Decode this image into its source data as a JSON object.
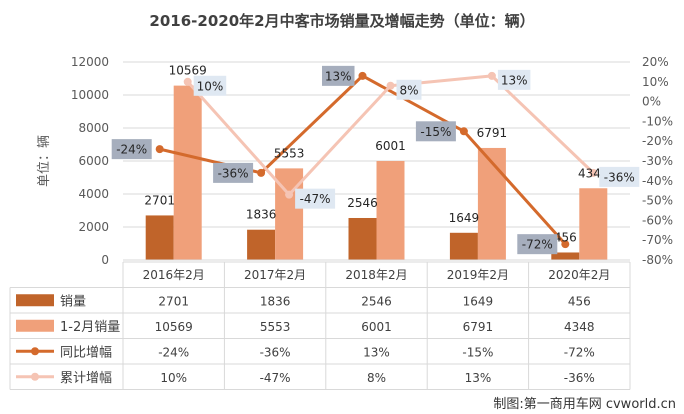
{
  "chart_data": {
    "type": "bar",
    "title": "2016-2020年2月中客市场销量及增幅走势（单位：辆）",
    "ylabel": "单位：辆",
    "ylim": [
      0,
      12000
    ],
    "y2lim": [
      -80,
      20
    ],
    "y_ticks": [
      "0",
      "2000",
      "4000",
      "6000",
      "8000",
      "10000",
      "12000"
    ],
    "y2_ticks": [
      "-80%",
      "-70%",
      "-60%",
      "-50%",
      "-40%",
      "-30%",
      "-20%",
      "-10%",
      "0%",
      "10%",
      "20%"
    ],
    "categories": [
      "2016年2月",
      "2017年2月",
      "2018年2月",
      "2019年2月",
      "2020年2月"
    ],
    "series": [
      {
        "name": "销量",
        "kind": "bar",
        "axis": "left",
        "color": "#C0642A",
        "values": [
          2701,
          1836,
          2546,
          1649,
          456
        ],
        "labels": [
          "2701",
          "1836",
          "2546",
          "1649",
          "456"
        ]
      },
      {
        "name": "1-2月销量",
        "kind": "bar",
        "axis": "left",
        "color": "#F0A07A",
        "values": [
          10569,
          5553,
          6001,
          6791,
          4348
        ],
        "labels": [
          "10569",
          "5553",
          "6001",
          "6791",
          "4348"
        ]
      },
      {
        "name": "同比增幅",
        "kind": "line",
        "axis": "right",
        "color": "#D46A2C",
        "values": [
          -24,
          -36,
          13,
          -15,
          -72
        ],
        "labels": [
          "-24%",
          "-36%",
          "13%",
          "-15%",
          "-72%"
        ]
      },
      {
        "name": "累计增幅",
        "kind": "line",
        "axis": "right",
        "color": "#F5C4B4",
        "values": [
          10,
          -47,
          8,
          13,
          -36
        ],
        "labels": [
          "10%",
          "-47%",
          "8%",
          "13%",
          "-36%"
        ]
      }
    ],
    "grid": true,
    "legend": "data table below chart"
  },
  "credit": "制图:第一商用车网 cvworld.cn"
}
